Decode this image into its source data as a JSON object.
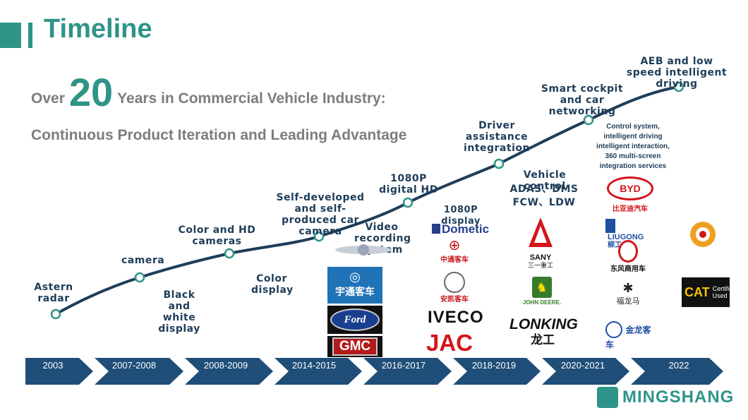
{
  "title": "Timeline",
  "subtitle": {
    "prefix": "Over",
    "number": "20",
    "suffix": "Years in Commercial Vehicle Industry:",
    "line2": "Continuous Product Iteration and Leading Advantage"
  },
  "milestones": {
    "m2003": "Astern radar",
    "m2007": "camera",
    "m2007_below": "Black and white display",
    "m2008": "Color and HD cameras",
    "m2008_below": "Color display",
    "m2014": "Self-developed and self-produced car camera",
    "m2014_below": "Video recording system",
    "m2016": "1080P digital HD",
    "m2016_below": "1080P display",
    "m2018": "Driver assistance integration",
    "m2018_below_1": "Vehicle control",
    "m2018_below_2": "ADAS、DMS",
    "m2018_below_3": "FCW、LDW",
    "m2020": "Smart cockpit and car networking",
    "m2020_below": "Control system, intelligent driving intelligent interaction, 360 multi-screen integration services",
    "m2022": "AEB and low speed intelligent driving"
  },
  "years": [
    "2003",
    "2007-2008",
    "2008-2009",
    "2014-2015",
    "2016-2017",
    "2018-2019",
    "2020-2021",
    "2022"
  ],
  "logos": {
    "yutong": "宇通客车",
    "ford": "Ford",
    "gmc": "GMC",
    "dometic": "Dometic",
    "zhongtong": "中通客车",
    "ankai": "安凯客车",
    "iveco": "IVECO",
    "jac": "JAC",
    "sany": "SANY",
    "sany_cn": "三一重工",
    "johndeere": "JOHN DEERE.",
    "lonking": "LONKING",
    "lonking_cn": "龙工",
    "byd": "BYD",
    "byd_cn": "比亚迪汽车",
    "liugong": "LIUGONG",
    "liugong_cn": "柳工",
    "dongfeng_cn": "东风商用车",
    "fulongma_cn": "福龙马",
    "kinglong_cn": "金龙客车",
    "cat": "CAT",
    "certified": "Certified Used",
    "company": "MINGSHANG"
  },
  "colors": {
    "accent": "#2f9488",
    "dark": "#1e3d59",
    "arrow": "#1f4e79"
  }
}
